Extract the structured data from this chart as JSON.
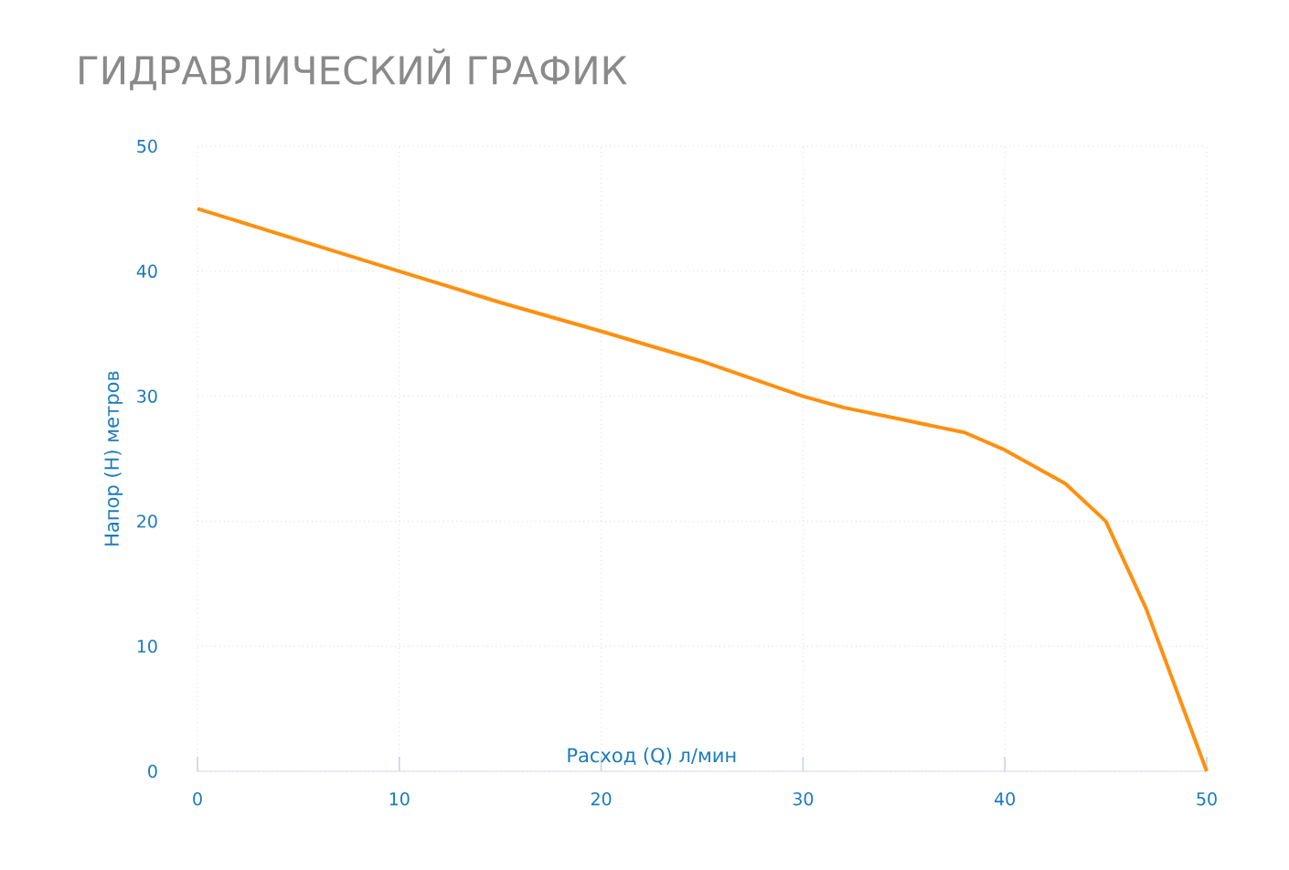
{
  "chart_data": {
    "type": "line",
    "title": "ГИДРАВЛИЧЕСКИЙ ГРАФИК",
    "xlabel": "Расход (Q) л/мин",
    "ylabel": "Напор (H) метров",
    "x": [
      0,
      5,
      10,
      15,
      20,
      25,
      30,
      32,
      35,
      38,
      40,
      43,
      45,
      47,
      50
    ],
    "series": [
      {
        "color": "#ff9010",
        "values": [
          45,
          42.5,
          40,
          37.5,
          35.2,
          32.8,
          30,
          29.1,
          28.1,
          27.1,
          25.7,
          23,
          20,
          13,
          0
        ]
      }
    ],
    "xlim": [
      0,
      50
    ],
    "ylim": [
      0,
      50
    ],
    "xticks": [
      0,
      10,
      20,
      30,
      40,
      50
    ],
    "yticks": [
      0,
      10,
      20,
      30,
      40,
      50
    ],
    "grid": true,
    "marker": "none",
    "line_style": "solid"
  }
}
